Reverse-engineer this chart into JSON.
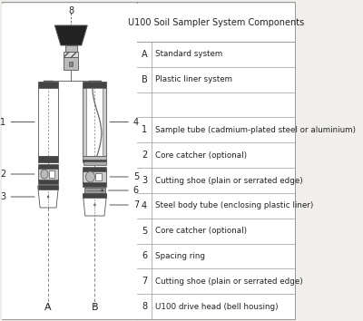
{
  "title": "U100 Soil Sampler System Components",
  "table_rows": [
    [
      "A",
      "Standard system"
    ],
    [
      "B",
      "Plastic liner system"
    ],
    [
      "",
      ""
    ],
    [
      "1",
      "Sample tube (cadmium-plated steel or aluminium)"
    ],
    [
      "2",
      "Core catcher (optional)"
    ],
    [
      "3",
      "Cutting shoe (plain or serrated edge)"
    ],
    [
      "4",
      "Steel body tube (enclosing plastic liner)"
    ],
    [
      "5",
      "Core catcher (optional)"
    ],
    [
      "6",
      "Spacing ring"
    ],
    [
      "7",
      "Cutting shoe (plain or serrated edge)"
    ],
    [
      "8",
      "U100 drive head (bell housing)"
    ]
  ],
  "label_A": "A",
  "label_B": "B",
  "bg_color": "#f0efeb",
  "diag_bg": "#f0efeb",
  "table_bg": "#ffffff",
  "line_color": "#555555",
  "text_color": "#222222",
  "border_color": "#999999",
  "dark_color": "#444444",
  "mid_color": "#888888",
  "light_color": "#cccccc"
}
